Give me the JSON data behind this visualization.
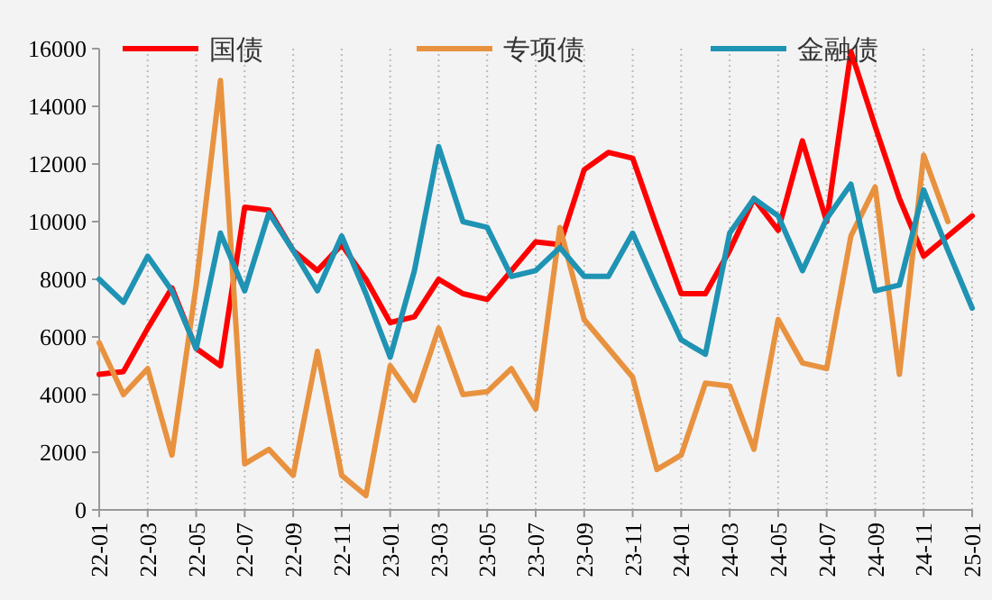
{
  "chart_data": {
    "type": "line",
    "categories": [
      "22-01",
      null,
      "22-03",
      null,
      "22-05",
      null,
      "22-07",
      null,
      "22-09",
      null,
      "22-11",
      null,
      "23-01",
      null,
      "23-03",
      null,
      "23-05",
      null,
      "23-07",
      null,
      "23-09",
      null,
      "23-11",
      null,
      "24-01",
      null,
      "24-03",
      null,
      "24-05",
      null,
      "24-07",
      null,
      "24-09",
      null,
      "24-11",
      null,
      "25-01"
    ],
    "series": [
      {
        "name": "国债",
        "color": "#ff0000",
        "values": [
          4700,
          4800,
          6300,
          7700,
          5600,
          5000,
          10500,
          10400,
          9000,
          8300,
          9200,
          8000,
          6500,
          6700,
          8000,
          7500,
          7300,
          8300,
          9300,
          9200,
          11800,
          12400,
          12200,
          9800,
          7500,
          7500,
          9000,
          10800,
          9700,
          12800,
          10000,
          15900,
          13300,
          10800,
          8800,
          9500,
          10200
        ]
      },
      {
        "name": "专项债",
        "color": "#e8923f",
        "values": [
          5800,
          4000,
          4900,
          1900,
          7800,
          14900,
          1600,
          2100,
          1200,
          5500,
          1200,
          500,
          5000,
          3800,
          6300,
          4000,
          4100,
          4900,
          3500,
          9800,
          6600,
          5600,
          4600,
          1400,
          1900,
          4400,
          4300,
          2100,
          6600,
          5100,
          4900,
          9500,
          11200,
          4700,
          12300,
          10000,
          null
        ]
      },
      {
        "name": "金融债",
        "color": "#1f93b3",
        "values": [
          8000,
          7200,
          8800,
          7600,
          5600,
          9600,
          7600,
          10300,
          9000,
          7600,
          9500,
          7500,
          5300,
          8300,
          12600,
          10000,
          9800,
          8100,
          8300,
          9100,
          8100,
          8100,
          9600,
          7700,
          5900,
          5400,
          9600,
          10800,
          10200,
          8300,
          10100,
          11300,
          7600,
          7800,
          11100,
          9000,
          7000
        ]
      }
    ],
    "ylim": [
      0,
      16000
    ],
    "yticks": [
      0,
      2000,
      4000,
      6000,
      8000,
      10000,
      12000,
      14000,
      16000
    ],
    "grid": "x",
    "legend": "top",
    "line_style": "solid",
    "marker": "none"
  }
}
